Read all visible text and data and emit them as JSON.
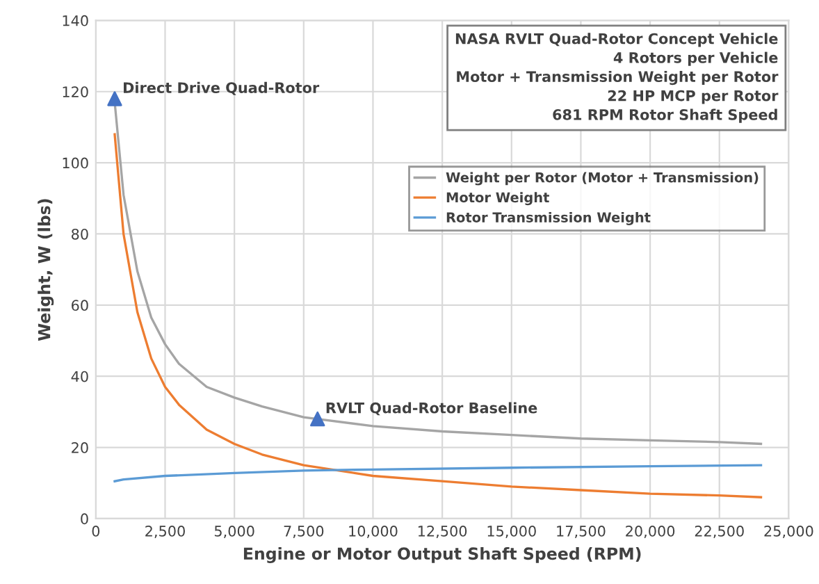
{
  "chart_data": {
    "type": "line",
    "xlabel": "Engine or Motor Output Shaft Speed (RPM)",
    "ylabel": "Weight, W (lbs)",
    "xlim": [
      0,
      25000
    ],
    "ylim": [
      0,
      140
    ],
    "xticks": [
      {
        "value": 0,
        "label": "0"
      },
      {
        "value": 2500,
        "label": "2,500"
      },
      {
        "value": 5000,
        "label": "5,000"
      },
      {
        "value": 7500,
        "label": "7,500"
      },
      {
        "value": 10000,
        "label": "10,000"
      },
      {
        "value": 12500,
        "label": "12,500"
      },
      {
        "value": 15000,
        "label": "15,000"
      },
      {
        "value": 17500,
        "label": "17,500"
      },
      {
        "value": 20000,
        "label": "20,000"
      },
      {
        "value": 22500,
        "label": "22,500"
      },
      {
        "value": 25000,
        "label": "25,000"
      }
    ],
    "yticks": [
      0,
      20,
      40,
      60,
      80,
      100,
      120,
      140
    ],
    "grid": true,
    "legend": "top right",
    "marker": "none",
    "line_style": "solid",
    "series": [
      {
        "name": "Weight per Rotor (Motor + Transmission)",
        "color": "#a5a5a5",
        "x": [
          681,
          1000,
          1500,
          2000,
          2500,
          3000,
          4000,
          5000,
          6000,
          7500,
          10000,
          12500,
          15000,
          17500,
          20000,
          22500,
          24000
        ],
        "values": [
          117,
          91,
          69.5,
          56.5,
          49,
          43.5,
          37,
          34,
          31.5,
          28.5,
          26,
          24.5,
          23.5,
          22.5,
          22,
          21.5,
          21
        ]
      },
      {
        "name": "Motor Weight",
        "color": "#ed7d31",
        "x": [
          681,
          1000,
          1500,
          2000,
          2500,
          3000,
          4000,
          5000,
          6000,
          7500,
          10000,
          12500,
          15000,
          17500,
          20000,
          22500,
          24000
        ],
        "values": [
          108,
          80,
          58,
          45,
          37,
          32,
          25,
          21,
          18,
          15,
          12,
          10.5,
          9,
          8,
          7,
          6.5,
          6
        ]
      },
      {
        "name": "Rotor Transmission Weight",
        "color": "#5b9bd5",
        "x": [
          681,
          1000,
          2500,
          5000,
          7500,
          10000,
          15000,
          20000,
          24000
        ],
        "values": [
          10.5,
          11,
          12,
          12.8,
          13.5,
          13.8,
          14.3,
          14.7,
          15
        ]
      },
      {
        "type": "scatter",
        "marker": "triangle",
        "color": "#4472c4",
        "x": [
          681,
          8000
        ],
        "values": [
          118,
          28
        ]
      }
    ],
    "annotations": [
      {
        "text": "Direct Drive Quad-Rotor",
        "x": 681,
        "y": 118
      },
      {
        "text": "RVLT Quad-Rotor Baseline",
        "x": 8000,
        "y": 28
      },
      "NASA RVLT Quad-Rotor Concept Vehicle\n4 Rotors per Vehicle\nMotor + Transmission Weight per Rotor\n22 HP MCP per Rotor\n681 RPM Rotor Shaft Speed"
    ]
  }
}
